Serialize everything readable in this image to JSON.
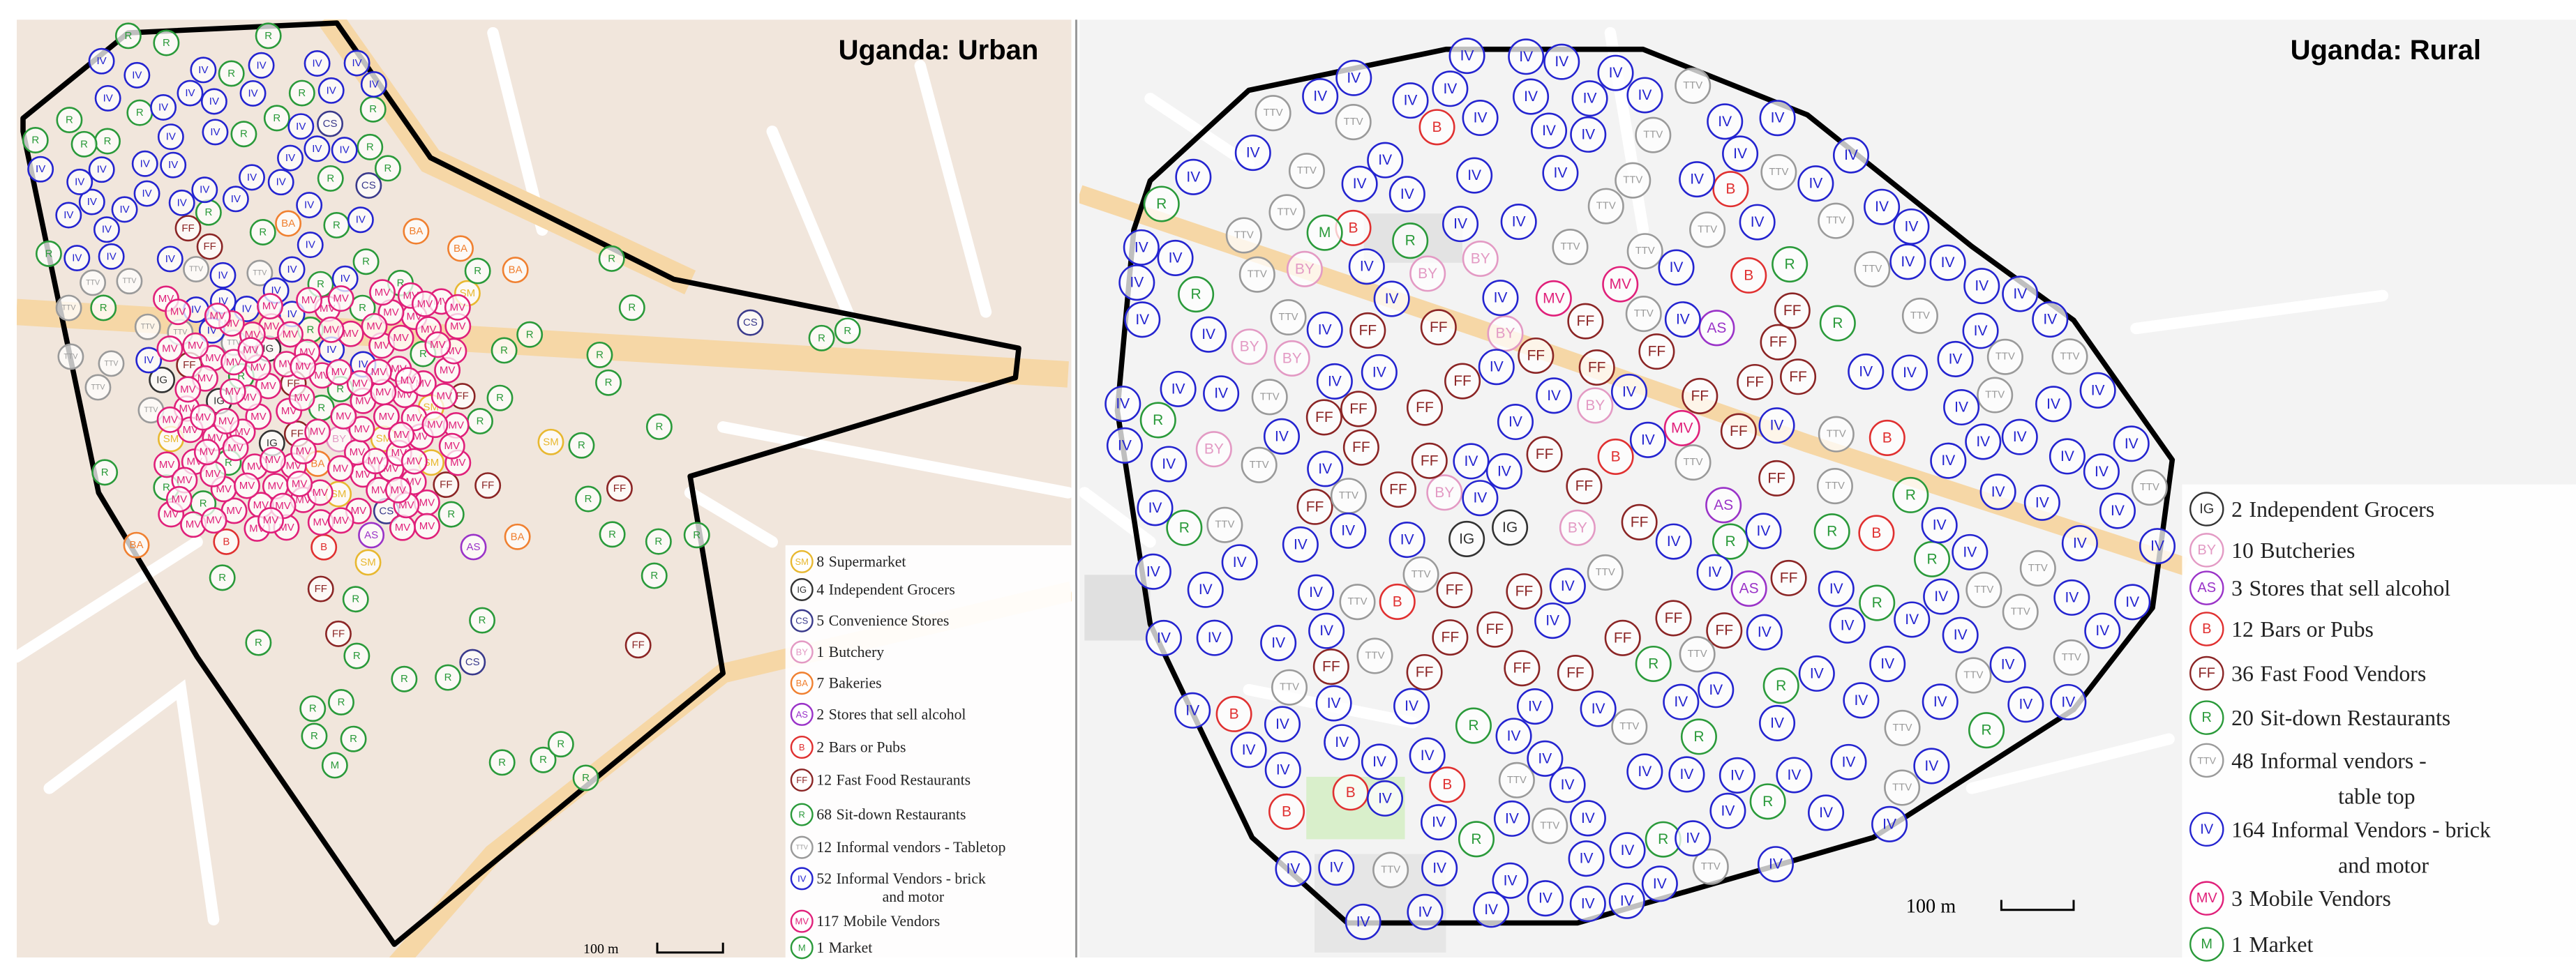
{
  "panels": [
    {
      "title": "Uganda: Urban",
      "scale": "100 m",
      "legend": [
        {
          "count": 8,
          "name": [
            "Supermarket"
          ],
          "code": "SM",
          "color": "#e8b830"
        },
        {
          "count": 4,
          "name": [
            "Independent Grocers"
          ],
          "code": "IG",
          "color": "#333333"
        },
        {
          "count": 5,
          "name": [
            "Convenience Stores"
          ],
          "code": "CS",
          "color": "#3a3a8c"
        },
        {
          "count": 1,
          "name": [
            "Butchery"
          ],
          "code": "BY",
          "color": "#e39ac4"
        },
        {
          "count": 7,
          "name": [
            "Bakeries"
          ],
          "code": "BA",
          "color": "#f08030"
        },
        {
          "count": 2,
          "name": [
            "Stores that sell alcohol"
          ],
          "code": "AS",
          "color": "#9a33c8"
        },
        {
          "count": 2,
          "name": [
            "Bars or Pubs"
          ],
          "code": "B",
          "color": "#e03030"
        },
        {
          "count": 12,
          "name": [
            "Fast Food Restaurants"
          ],
          "code": "FF",
          "color": "#8b2525"
        },
        {
          "count": 68,
          "name": [
            "Sit-down Restaurants"
          ],
          "code": "R",
          "color": "#2a9a3a"
        },
        {
          "count": 12,
          "name": [
            "Informal vendors - Tabletop"
          ],
          "code": "TTV",
          "color": "#9a9a9a"
        },
        {
          "count": 52,
          "name": [
            "Informal Vendors - brick",
            "and motor"
          ],
          "code": "IV",
          "color": "#2424d0"
        },
        {
          "count": 117,
          "name": [
            "Mobile Vendors"
          ],
          "code": "MV",
          "color": "#e0207a"
        },
        {
          "count": 1,
          "name": [
            "Market"
          ],
          "code": "M",
          "color": "#2a9a3a"
        }
      ]
    },
    {
      "title": "Uganda: Rural",
      "scale": "100 m",
      "legend": [
        {
          "count": 2,
          "name": [
            "Independent Grocers"
          ],
          "code": "IG",
          "color": "#333333"
        },
        {
          "count": 10,
          "name": [
            "Butcheries"
          ],
          "code": "BY",
          "color": "#e39ac4"
        },
        {
          "count": 3,
          "name": [
            "Stores that sell alcohol"
          ],
          "code": "AS",
          "color": "#9a33c8"
        },
        {
          "count": 12,
          "name": [
            "Bars or Pubs"
          ],
          "code": "B",
          "color": "#e03030"
        },
        {
          "count": 36,
          "name": [
            "Fast Food Vendors"
          ],
          "code": "FF",
          "color": "#8b2525"
        },
        {
          "count": 20,
          "name": [
            "Sit-down Restaurants"
          ],
          "code": "R",
          "color": "#2a9a3a"
        },
        {
          "count": 48,
          "name": [
            "Informal vendors -",
            "table top"
          ],
          "code": "TTV",
          "color": "#9a9a9a"
        },
        {
          "count": 164,
          "name": [
            "Informal Vendors - brick",
            "and motor"
          ],
          "code": "IV",
          "color": "#2424d0"
        },
        {
          "count": 3,
          "name": [
            "Mobile Vendors"
          ],
          "code": "MV",
          "color": "#e0207a"
        },
        {
          "count": 1,
          "name": [
            "Market"
          ],
          "code": "M",
          "color": "#2a9a3a"
        }
      ]
    }
  ]
}
